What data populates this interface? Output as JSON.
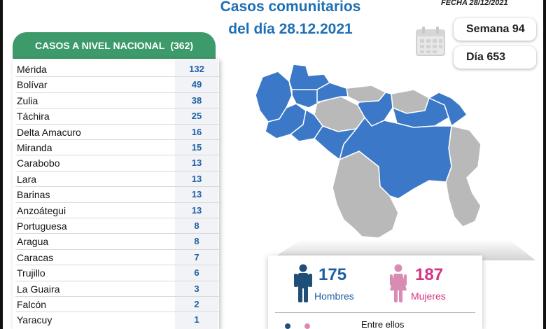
{
  "header": {
    "headline_line1": "Casos comunitarios",
    "headline_line2": "del día 28.12.2021",
    "fecha": "FECHA 28/12/2021"
  },
  "badges": {
    "semana": "Semana 94",
    "dia": "Día 653"
  },
  "national": {
    "label": "CASOS A NIVEL NACIONAL",
    "total": "(362)"
  },
  "states": [
    {
      "name": "Mérida",
      "cases": "132"
    },
    {
      "name": "Bolívar",
      "cases": "49"
    },
    {
      "name": "Zulia",
      "cases": "38"
    },
    {
      "name": "Táchira",
      "cases": "25"
    },
    {
      "name": "Delta Amacuro",
      "cases": "16"
    },
    {
      "name": "Miranda",
      "cases": "15"
    },
    {
      "name": "Carabobo",
      "cases": "13"
    },
    {
      "name": "Lara",
      "cases": "13"
    },
    {
      "name": "Barinas",
      "cases": "13"
    },
    {
      "name": "Anzoátegui",
      "cases": "13"
    },
    {
      "name": "Portuguesa",
      "cases": "8"
    },
    {
      "name": "Aragua",
      "cases": "8"
    },
    {
      "name": "Caracas",
      "cases": "7"
    },
    {
      "name": "Trujillo",
      "cases": "6"
    },
    {
      "name": "La Guaira",
      "cases": "3"
    },
    {
      "name": "Falcón",
      "cases": "2"
    },
    {
      "name": "Yaracuy",
      "cases": "1"
    }
  ],
  "gender": {
    "men_count": "175",
    "men_label": "Hombres",
    "women_count": "187",
    "women_label": "Mujeres",
    "footer": "Entre ellos"
  },
  "icons": [
    "calendar-icon",
    "man-icon",
    "woman-icon",
    "venezuela-map"
  ],
  "colors": {
    "headline_blue": "#1f6fb3",
    "header_green": "#3d9a6a",
    "count_blue": "#1f5fa5",
    "map_blue": "#3b78c8",
    "map_gray": "#b9b9b9",
    "women_pink": "#d63384"
  }
}
